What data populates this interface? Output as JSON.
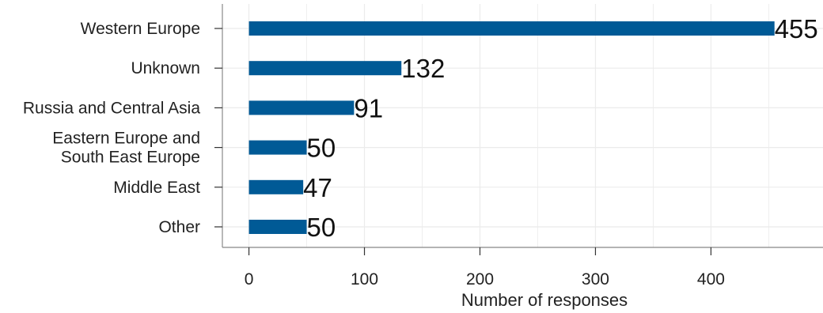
{
  "chart_data": {
    "type": "bar",
    "orientation": "horizontal",
    "categories": [
      "Western Europe",
      "Unknown",
      "Russia and Central Asia",
      "Eastern Europe and\nSouth East Europe",
      "Middle East",
      "Other"
    ],
    "values": [
      455,
      132,
      91,
      50,
      47,
      50
    ],
    "data_labels": [
      "455",
      "132",
      "91",
      "50",
      "47",
      "50"
    ],
    "xlabel": "Number of responses",
    "ylabel": "",
    "xlim": [
      -23,
      497
    ],
    "xticks": [
      0,
      100,
      200,
      300,
      400
    ],
    "xtick_labels": [
      "0",
      "100",
      "200",
      "300",
      "400"
    ],
    "grid": true,
    "bar_color": "#005a96",
    "grid_color": "#ebebeb",
    "axis_color": "#888888"
  }
}
